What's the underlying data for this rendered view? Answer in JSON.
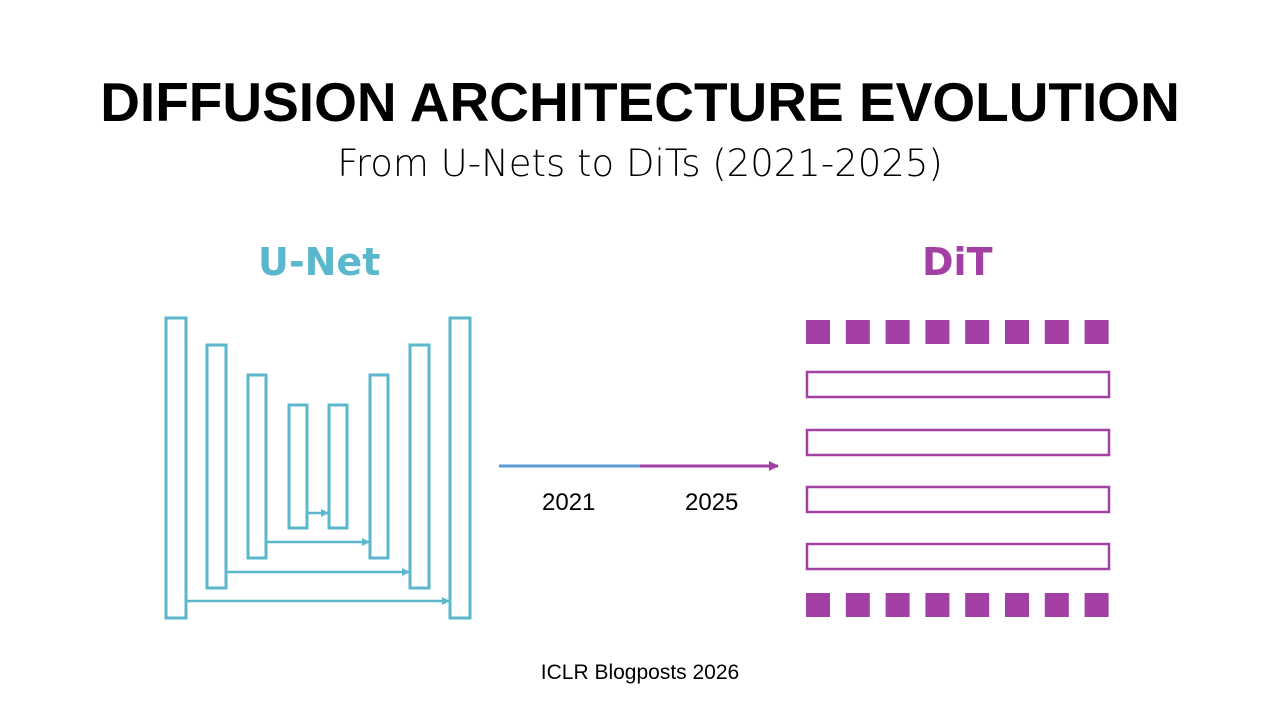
{
  "title": "DIFFUSION ARCHITECTURE EVOLUTION",
  "subtitle": "From U-Nets to DiTs (2021-2025)",
  "unet": {
    "label": "U-Net",
    "color": "#5bb8cc",
    "levels": 4
  },
  "dit": {
    "label": "DiT",
    "color": "#a43fa3",
    "tokens_per_row": 8,
    "blocks": 4
  },
  "timeline": {
    "start": "2021",
    "end": "2025",
    "start_color": "#5b9bd5",
    "end_color": "#a43fa3"
  },
  "footer": "ICLR Blogposts 2026"
}
